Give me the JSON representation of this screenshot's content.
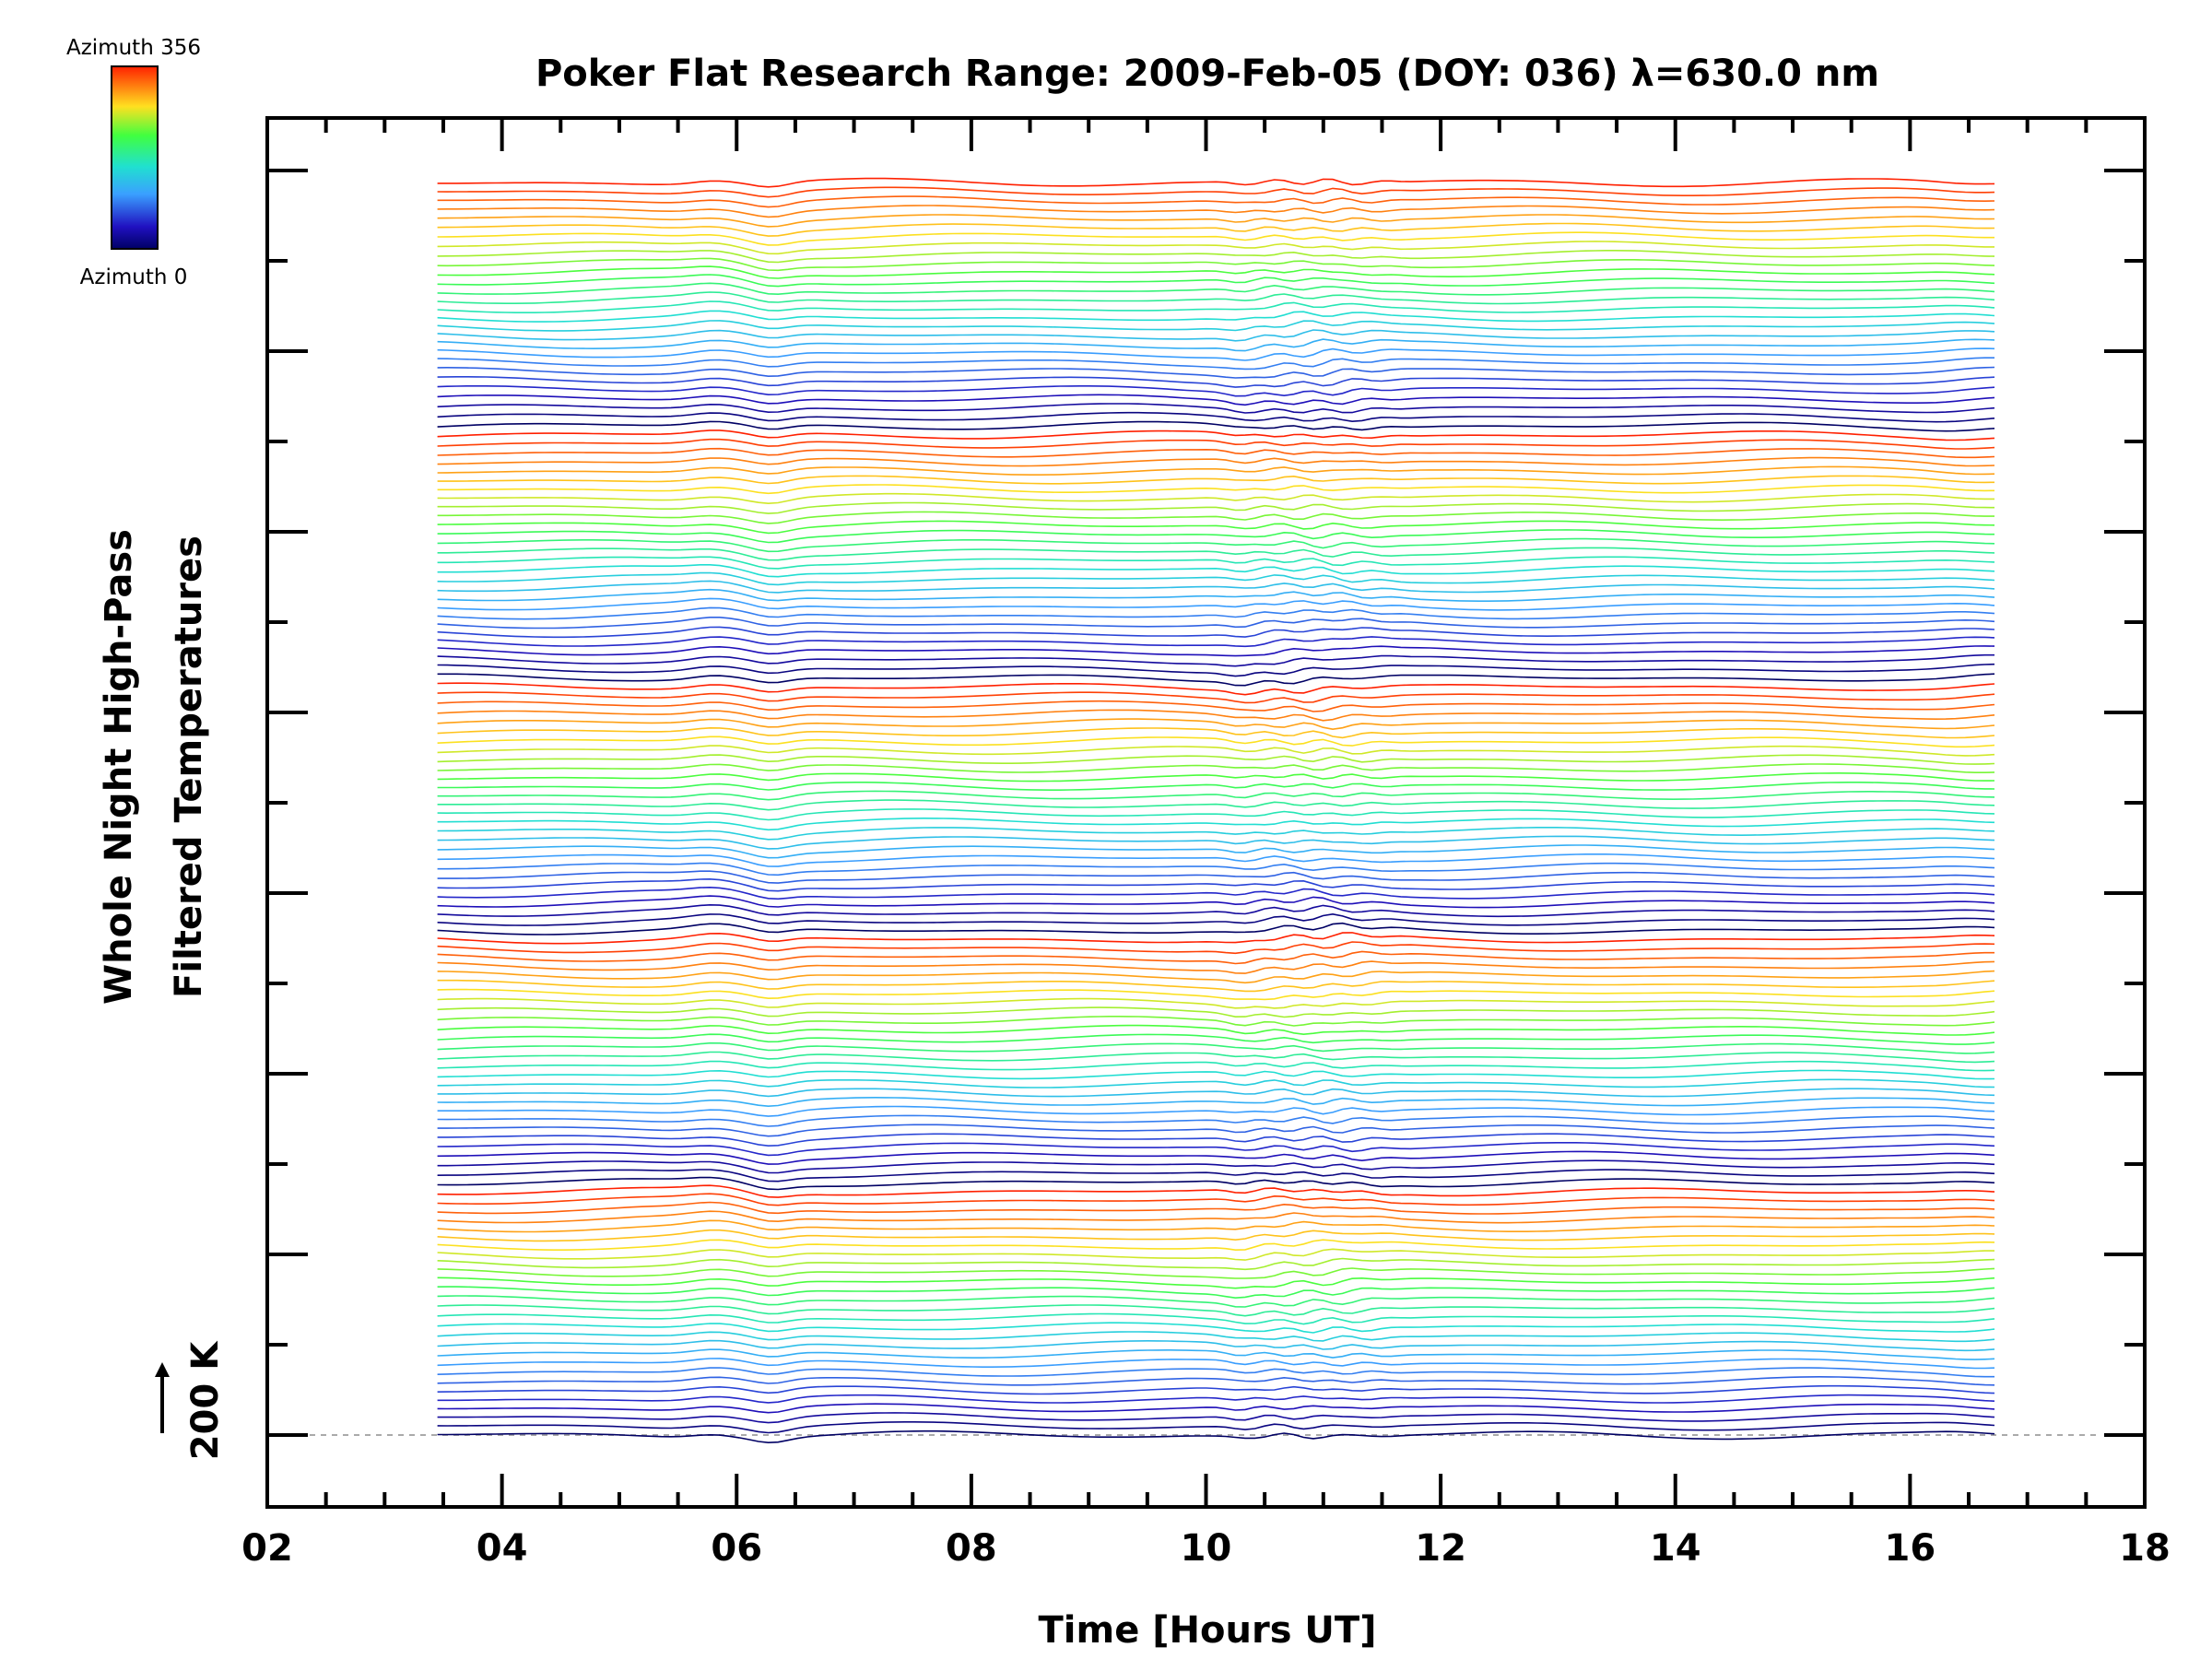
{
  "chart_data": {
    "type": "line",
    "title": "Poker Flat Research Range: 2009-Feb-05 (DOY: 036) λ=630.0 nm",
    "xlabel": "Time [Hours UT]",
    "ylabel_line1": "Whole Night High-Pass",
    "ylabel_line2": "Filtered Temperatures",
    "xlim": [
      2,
      18
    ],
    "x_ticks": [
      "02",
      "04",
      "06",
      "08",
      "10",
      "12",
      "14",
      "16",
      "18"
    ],
    "x_range_data": [
      3.45,
      16.72
    ],
    "scale_bar": {
      "value": 200,
      "unit": "K",
      "label": "200 K"
    },
    "series_count": 140,
    "azimuth_colorbar": {
      "min_label": "Azimuth 0",
      "max_label": "Azimuth 356",
      "min": 0,
      "max": 356
    },
    "azimuth_cycle_length": 28,
    "traces_description": "Stacked high-pass filtered temperature traces colored by azimuth (0 to 356), baseline dashed at bottom",
    "colors": {
      "axis": "#000000",
      "baseline": "#aaaaaa"
    }
  }
}
